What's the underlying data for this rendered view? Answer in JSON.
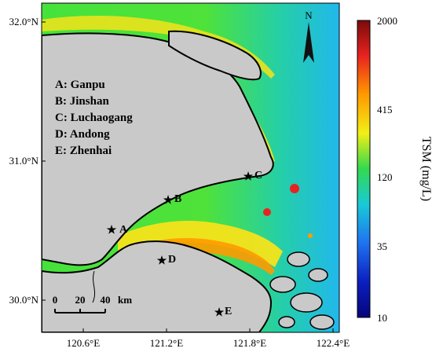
{
  "map": {
    "latitude_labels": [
      "32.0°N",
      "31.0°N",
      "30.0°N"
    ],
    "longitude_labels": [
      "120.6°E",
      "121.2°E",
      "121.8°E",
      "122.4°E"
    ],
    "north_label": "N",
    "legend_title": "",
    "stations": [
      {
        "letter": "A",
        "name": "Ganpu"
      },
      {
        "letter": "B",
        "name": "Jinshan"
      },
      {
        "letter": "C",
        "name": "Luchaogang"
      },
      {
        "letter": "D",
        "name": "Andong"
      },
      {
        "letter": "E",
        "name": "Zhenhai"
      }
    ],
    "station_legend": [
      "A: Ganpu",
      "B: Jinshan",
      "C: Luchaogang",
      "D: Andong",
      "E: Zhenhai"
    ],
    "scale_bar": {
      "ticks": [
        "0",
        "20",
        "40"
      ],
      "unit": "km"
    }
  },
  "colorbar": {
    "title": "TSM (mg/L)",
    "tick_labels": [
      "2000",
      "415",
      "120",
      "35",
      "10"
    ],
    "colors": [
      "#7a0b0b",
      "#e8231f",
      "#ff9a00",
      "#f2ef16",
      "#33d94f",
      "#19c9d8",
      "#1f73f0",
      "#0b1fbf",
      "#05057a"
    ]
  },
  "colors": {
    "land": "#c9c9c9",
    "water_nearshore": "#f5e31a",
    "water_mid": "#4fe33a",
    "water_offshore": "#21c3e6",
    "coastline": "#000000"
  }
}
